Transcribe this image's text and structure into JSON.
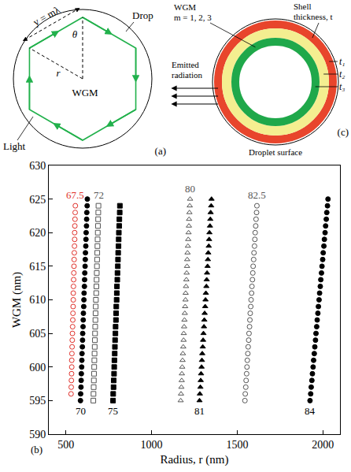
{
  "chart_data": {
    "type": "scatter",
    "xlabel": "Radius, r (nm)",
    "ylabel": "WGM (nm)",
    "xlim": [
      400,
      2100
    ],
    "xticks": [
      500,
      1000,
      1500,
      2000
    ],
    "ylim": [
      590,
      630
    ],
    "yticks": [
      590,
      595,
      600,
      605,
      610,
      615,
      620,
      625,
      630
    ],
    "grid": false,
    "annotations": [
      "(b)"
    ],
    "series": [
      {
        "name": "67.5",
        "color": "#e0302a",
        "marker": "circle-open",
        "x": [
          530,
          531,
          532,
          533,
          534,
          534,
          535,
          536,
          537,
          538,
          539,
          540,
          541,
          542,
          543,
          543,
          544,
          545,
          546,
          547,
          548,
          549,
          550,
          551,
          551,
          552,
          553,
          554,
          555
        ],
        "values": [
          596,
          597,
          598,
          599,
          600,
          601,
          602,
          603,
          604,
          605,
          606,
          607,
          608,
          609,
          610,
          611,
          612,
          613,
          614,
          615,
          616,
          617,
          618,
          619,
          620,
          621,
          622,
          623,
          624
        ]
      },
      {
        "name": "70",
        "color": "#000000",
        "marker": "circle",
        "x": [
          585,
          586,
          588,
          589,
          590,
          592,
          593,
          594,
          596,
          597,
          598,
          600,
          601,
          602,
          604,
          605,
          606,
          608,
          609,
          610,
          612,
          613,
          614,
          616,
          617,
          618,
          620,
          621,
          622,
          624,
          625
        ],
        "values": [
          595,
          596,
          597,
          598,
          599,
          600,
          601,
          602,
          603,
          604,
          605,
          606,
          607,
          608,
          609,
          610,
          611,
          612,
          613,
          614,
          615,
          616,
          617,
          618,
          619,
          620,
          621,
          622,
          623,
          624,
          625
        ]
      },
      {
        "name": "72",
        "color": "#555555",
        "marker": "square-open",
        "x": [
          660,
          661,
          662,
          663,
          664,
          665,
          666,
          667,
          668,
          669,
          670,
          671,
          672,
          673,
          674,
          675,
          677,
          678,
          679,
          680,
          681,
          682,
          683,
          684,
          685,
          686,
          687,
          688,
          689,
          690
        ],
        "values": [
          595,
          596,
          597,
          598,
          599,
          600,
          601,
          602,
          603,
          604,
          605,
          606,
          607,
          608,
          609,
          610,
          611,
          612,
          613,
          614,
          615,
          616,
          617,
          618,
          619,
          620,
          621,
          622,
          623,
          624
        ]
      },
      {
        "name": "75",
        "color": "#000000",
        "marker": "square",
        "x": [
          775,
          776,
          778,
          779,
          781,
          782,
          783,
          785,
          786,
          787,
          789,
          790,
          792,
          793,
          794,
          796,
          797,
          798,
          800,
          801,
          803,
          804,
          805,
          807,
          808,
          809,
          811,
          812,
          814,
          815
        ],
        "values": [
          595,
          596,
          597,
          598,
          599,
          600,
          601,
          602,
          603,
          604,
          605,
          606,
          607,
          608,
          609,
          610,
          611,
          612,
          613,
          614,
          615,
          616,
          617,
          618,
          619,
          620,
          621,
          622,
          623,
          624
        ]
      },
      {
        "name": "80",
        "color": "#555555",
        "marker": "triangle-up-open",
        "x": [
          1170,
          1172,
          1174,
          1176,
          1177,
          1179,
          1181,
          1183,
          1185,
          1187,
          1188,
          1190,
          1192,
          1194,
          1196,
          1198,
          1199,
          1201,
          1203,
          1205,
          1207,
          1208,
          1210,
          1212,
          1214,
          1216,
          1218,
          1219,
          1221,
          1223,
          1225
        ],
        "values": [
          595,
          596,
          597,
          598,
          599,
          600,
          601,
          602,
          603,
          604,
          605,
          606,
          607,
          608,
          609,
          610,
          611,
          612,
          613,
          614,
          615,
          616,
          617,
          618,
          619,
          620,
          621,
          622,
          623,
          624,
          625
        ]
      },
      {
        "name": "81",
        "color": "#000000",
        "marker": "triangle-up",
        "x": [
          1280,
          1282,
          1285,
          1287,
          1289,
          1292,
          1294,
          1296,
          1299,
          1301,
          1303,
          1306,
          1308,
          1310,
          1313,
          1315,
          1317,
          1320,
          1322,
          1324,
          1327,
          1329,
          1331,
          1334,
          1336,
          1338,
          1341,
          1343,
          1345,
          1348,
          1350
        ],
        "values": [
          595,
          596,
          597,
          598,
          599,
          600,
          601,
          602,
          603,
          604,
          605,
          606,
          607,
          608,
          609,
          610,
          611,
          612,
          613,
          614,
          615,
          616,
          617,
          618,
          619,
          620,
          621,
          622,
          623,
          624,
          625
        ]
      },
      {
        "name": "82.5",
        "color": "#555555",
        "marker": "circle-open",
        "x": [
          1545,
          1547,
          1550,
          1552,
          1555,
          1557,
          1559,
          1562,
          1564,
          1567,
          1569,
          1572,
          1574,
          1576,
          1579,
          1581,
          1584,
          1586,
          1589,
          1591,
          1593,
          1596,
          1598,
          1601,
          1603,
          1605,
          1608,
          1610,
          1613,
          1615
        ],
        "values": [
          595,
          596,
          597,
          598,
          599,
          600,
          601,
          602,
          603,
          604,
          605,
          606,
          607,
          608,
          609,
          610,
          611,
          612,
          613,
          614,
          615,
          616,
          617,
          618,
          619,
          620,
          621,
          622,
          623,
          624
        ]
      },
      {
        "name": "84",
        "color": "#000000",
        "marker": "circle",
        "x": [
          1925,
          1929,
          1932,
          1936,
          1939,
          1943,
          1946,
          1950,
          1953,
          1957,
          1960,
          1964,
          1967,
          1971,
          1974,
          1978,
          1981,
          1985,
          1988,
          1992,
          1995,
          1999,
          2002,
          2006,
          2009,
          2013,
          2016,
          2020,
          2023,
          2027,
          2030
        ],
        "values": [
          595,
          596,
          597,
          598,
          599,
          600,
          601,
          602,
          603,
          604,
          605,
          606,
          607,
          608,
          609,
          610,
          611,
          612,
          613,
          614,
          615,
          616,
          617,
          618,
          619,
          620,
          621,
          622,
          623,
          624,
          625
        ]
      }
    ]
  },
  "panels": {
    "a": {
      "label": "(a)",
      "drop": "Drop",
      "light": "Light",
      "wgm": "WGM",
      "path": "y = mλ",
      "angle": "θ",
      "radius": "r"
    },
    "c": {
      "label": "(c)",
      "wgm": "WGM",
      "modes": "m = 1, 2, 3",
      "shell": [
        "Shell",
        "thickness, t"
      ],
      "shells": [
        "t₁",
        "t₂",
        "t₃"
      ],
      "emitted": [
        "Emitted",
        "radiation"
      ],
      "surface": "Droplet surface"
    }
  }
}
